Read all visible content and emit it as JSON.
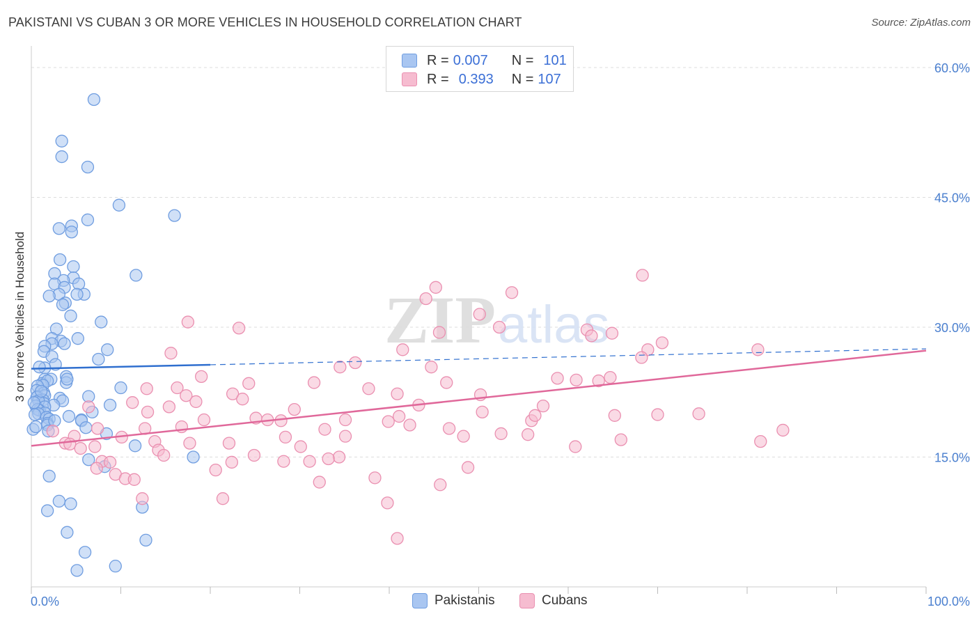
{
  "title": "PAKISTANI VS CUBAN 3 OR MORE VEHICLES IN HOUSEHOLD CORRELATION CHART",
  "source": "Source: ZipAtlas.com",
  "watermark": {
    "zip": "ZIP",
    "atlas": "atlas"
  },
  "legend": {
    "rows": [
      {
        "r_label": "R =",
        "r_value": "0.007",
        "n_label": "N =",
        "n_value": "101"
      },
      {
        "r_label": "R =",
        "r_value": "0.393",
        "n_label": "N =",
        "n_value": "107"
      }
    ]
  },
  "bottom_legend": {
    "pakistanis": "Pakistanis",
    "cubans": "Cubans"
  },
  "colors": {
    "pak_fill": "#a9c6f1",
    "pak_stroke": "#6f9de0",
    "pak_line": "#2f6fcf",
    "cub_fill": "#f6bcd0",
    "cub_stroke": "#ea8fb0",
    "cub_line": "#e0689a",
    "grid": "#dddddd",
    "tick": "#4a7fcf"
  },
  "chart_data": {
    "type": "scatter",
    "title": "PAKISTANI VS CUBAN 3 OR MORE VEHICLES IN HOUSEHOLD CORRELATION CHART",
    "xlabel": "",
    "ylabel": "3 or more Vehicles in Household",
    "xlim": [
      0,
      100
    ],
    "ylim": [
      0,
      60
    ],
    "x_tick_labels": [
      "0.0%",
      "100.0%"
    ],
    "y_ticks": [
      15,
      30,
      45,
      60
    ],
    "y_tick_labels": [
      "15.0%",
      "30.0%",
      "45.0%",
      "60.0%"
    ],
    "series": [
      {
        "name": "Pakistanis",
        "R": 0.007,
        "N": 101,
        "trend": {
          "x0": 0,
          "y0": 25.2,
          "x1": 100,
          "y1": 27.5,
          "solid_until": 20
        },
        "points": [
          [
            7,
            56.3
          ],
          [
            3.4,
            51.5
          ],
          [
            3.4,
            49.7
          ],
          [
            6.3,
            48.5
          ],
          [
            9.8,
            44.1
          ],
          [
            16,
            42.9
          ],
          [
            6.3,
            42.4
          ],
          [
            3.1,
            41.4
          ],
          [
            4.5,
            41.7
          ],
          [
            4.5,
            41
          ],
          [
            3.2,
            37.8
          ],
          [
            4.7,
            37
          ],
          [
            2.6,
            36.2
          ],
          [
            11.7,
            36
          ],
          [
            4.7,
            35.7
          ],
          [
            3.6,
            35.4
          ],
          [
            2.6,
            35
          ],
          [
            5.3,
            35
          ],
          [
            3.7,
            34.6
          ],
          [
            3.1,
            33.8
          ],
          [
            5.9,
            33.8
          ],
          [
            2,
            33.6
          ],
          [
            5.1,
            33.8
          ],
          [
            3.8,
            32.8
          ],
          [
            3.5,
            32.6
          ],
          [
            4.4,
            31.3
          ],
          [
            7.8,
            30.6
          ],
          [
            2.8,
            29.8
          ],
          [
            2.3,
            28.7
          ],
          [
            5.2,
            28.7
          ],
          [
            3.3,
            28.4
          ],
          [
            3.7,
            28.1
          ],
          [
            2.3,
            28.1
          ],
          [
            1.5,
            27.8
          ],
          [
            1.4,
            27.2
          ],
          [
            8.5,
            27.4
          ],
          [
            2.3,
            26.6
          ],
          [
            7.5,
            26.3
          ],
          [
            2.7,
            25.7
          ],
          [
            1.5,
            25.3
          ],
          [
            0.9,
            25.4
          ],
          [
            3.9,
            24.3
          ],
          [
            1.5,
            24
          ],
          [
            1.2,
            23.5
          ],
          [
            3.9,
            23.6
          ],
          [
            4,
            24
          ],
          [
            2.2,
            24
          ],
          [
            1.8,
            23.8
          ],
          [
            1.3,
            23.3
          ],
          [
            0.7,
            23.2
          ],
          [
            10,
            23
          ],
          [
            0.6,
            22.7
          ],
          [
            1.4,
            22.4
          ],
          [
            0.7,
            22
          ],
          [
            1.5,
            22.1
          ],
          [
            0.6,
            21.9
          ],
          [
            3.2,
            21.8
          ],
          [
            3.5,
            21.5
          ],
          [
            1.3,
            21.6
          ],
          [
            1.4,
            21.2
          ],
          [
            6.4,
            22
          ],
          [
            0.8,
            21.5
          ],
          [
            2.5,
            21
          ],
          [
            0.5,
            20.9
          ],
          [
            8.8,
            21
          ],
          [
            1.5,
            20.8
          ],
          [
            0.9,
            20.4
          ],
          [
            0.7,
            20.5
          ],
          [
            6.8,
            20.2
          ],
          [
            1.5,
            20.1
          ],
          [
            0.8,
            20
          ],
          [
            0.4,
            19.9
          ],
          [
            1.7,
            19.6
          ],
          [
            2,
            19.4
          ],
          [
            5.6,
            19.3
          ],
          [
            4.2,
            19.7
          ],
          [
            5.6,
            19.2
          ],
          [
            1.8,
            18.9
          ],
          [
            1.8,
            18.7
          ],
          [
            6.1,
            18.4
          ],
          [
            0.2,
            18.2
          ],
          [
            1.9,
            18
          ],
          [
            8.4,
            17.7
          ],
          [
            11.6,
            16.3
          ],
          [
            18.1,
            15
          ],
          [
            6.4,
            14.7
          ],
          [
            8.2,
            13.9
          ],
          [
            2,
            12.8
          ],
          [
            3.1,
            9.9
          ],
          [
            4.4,
            9.6
          ],
          [
            12.4,
            9.2
          ],
          [
            1.8,
            8.8
          ],
          [
            4,
            6.3
          ],
          [
            12.8,
            5.4
          ],
          [
            6,
            4
          ],
          [
            5.1,
            1.9
          ],
          [
            9.4,
            2.4
          ],
          [
            0.5,
            18.5
          ],
          [
            0.3,
            21.3
          ],
          [
            2.6,
            19.2
          ],
          [
            1.1,
            22.6
          ]
        ]
      },
      {
        "name": "Cubans",
        "R": 0.393,
        "N": 107,
        "trend": {
          "x0": 0,
          "y0": 16.3,
          "x1": 100,
          "y1": 27.3
        },
        "points": [
          [
            68.3,
            36
          ],
          [
            45.2,
            34.6
          ],
          [
            53.7,
            34
          ],
          [
            44.1,
            33.3
          ],
          [
            50.1,
            31.5
          ],
          [
            17.5,
            30.6
          ],
          [
            23.2,
            29.9
          ],
          [
            52.3,
            30
          ],
          [
            62.1,
            29.7
          ],
          [
            45.6,
            29.4
          ],
          [
            64.9,
            29.3
          ],
          [
            62.6,
            29
          ],
          [
            70.5,
            28.2
          ],
          [
            68.9,
            27.4
          ],
          [
            41.5,
            27.4
          ],
          [
            81.2,
            27.4
          ],
          [
            15.6,
            27
          ],
          [
            68.2,
            26.5
          ],
          [
            36.2,
            25.9
          ],
          [
            34.5,
            25.4
          ],
          [
            44.7,
            25.4
          ],
          [
            19,
            24.3
          ],
          [
            58.8,
            24.1
          ],
          [
            60.9,
            23.9
          ],
          [
            64.7,
            24.2
          ],
          [
            31.6,
            23.6
          ],
          [
            46.4,
            23.6
          ],
          [
            63.4,
            23.8
          ],
          [
            24.3,
            23.5
          ],
          [
            12.9,
            22.9
          ],
          [
            16.3,
            23
          ],
          [
            37.7,
            22.9
          ],
          [
            22.5,
            22.3
          ],
          [
            40.9,
            22.3
          ],
          [
            17.3,
            22.1
          ],
          [
            50.2,
            22.2
          ],
          [
            11.3,
            21.3
          ],
          [
            23.6,
            21.7
          ],
          [
            18.4,
            21.4
          ],
          [
            43.3,
            21
          ],
          [
            15.4,
            20.8
          ],
          [
            6.4,
            20.8
          ],
          [
            57.2,
            20.9
          ],
          [
            50.4,
            20.2
          ],
          [
            41.1,
            19.7
          ],
          [
            29.4,
            20.5
          ],
          [
            13,
            20.2
          ],
          [
            65.2,
            19.8
          ],
          [
            74.6,
            20
          ],
          [
            70,
            19.9
          ],
          [
            55.9,
            19.2
          ],
          [
            42.3,
            18.7
          ],
          [
            26.4,
            19.3
          ],
          [
            35.1,
            19.3
          ],
          [
            19.3,
            19.3
          ],
          [
            27.9,
            19.2
          ],
          [
            39.9,
            19.1
          ],
          [
            25.1,
            19.5
          ],
          [
            56.3,
            19.8
          ],
          [
            16.8,
            18.5
          ],
          [
            12.7,
            18.3
          ],
          [
            32.8,
            18.2
          ],
          [
            84,
            18.1
          ],
          [
            7.4,
            18.3
          ],
          [
            46.7,
            18.3
          ],
          [
            2.4,
            18
          ],
          [
            52.5,
            17.7
          ],
          [
            55.5,
            17.6
          ],
          [
            4.8,
            17.4
          ],
          [
            10.1,
            17.3
          ],
          [
            48.3,
            17.4
          ],
          [
            28.4,
            17.3
          ],
          [
            35.1,
            17.4
          ],
          [
            13.8,
            16.8
          ],
          [
            65.9,
            17
          ],
          [
            22.1,
            16.6
          ],
          [
            17.7,
            16.6
          ],
          [
            3.8,
            16.6
          ],
          [
            81.5,
            16.8
          ],
          [
            4.3,
            16.5
          ],
          [
            7.1,
            16.2
          ],
          [
            30.1,
            16.2
          ],
          [
            60.8,
            16.2
          ],
          [
            5.5,
            16
          ],
          [
            14.2,
            15.8
          ],
          [
            24.9,
            15.2
          ],
          [
            14.8,
            15.2
          ],
          [
            7.9,
            14.5
          ],
          [
            34.4,
            15
          ],
          [
            22.4,
            14.4
          ],
          [
            28.2,
            14.5
          ],
          [
            8.8,
            14.4
          ],
          [
            31.1,
            14.5
          ],
          [
            33.2,
            14.8
          ],
          [
            20.6,
            13.5
          ],
          [
            7.3,
            13.7
          ],
          [
            48.8,
            13.8
          ],
          [
            9.4,
            13
          ],
          [
            10.5,
            12.5
          ],
          [
            11.5,
            12.4
          ],
          [
            32.2,
            12.1
          ],
          [
            38.4,
            12.6
          ],
          [
            45.7,
            11.8
          ],
          [
            12.4,
            10.2
          ],
          [
            21.4,
            10.2
          ],
          [
            39.8,
            9.7
          ],
          [
            40.9,
            5.6
          ]
        ]
      }
    ]
  }
}
